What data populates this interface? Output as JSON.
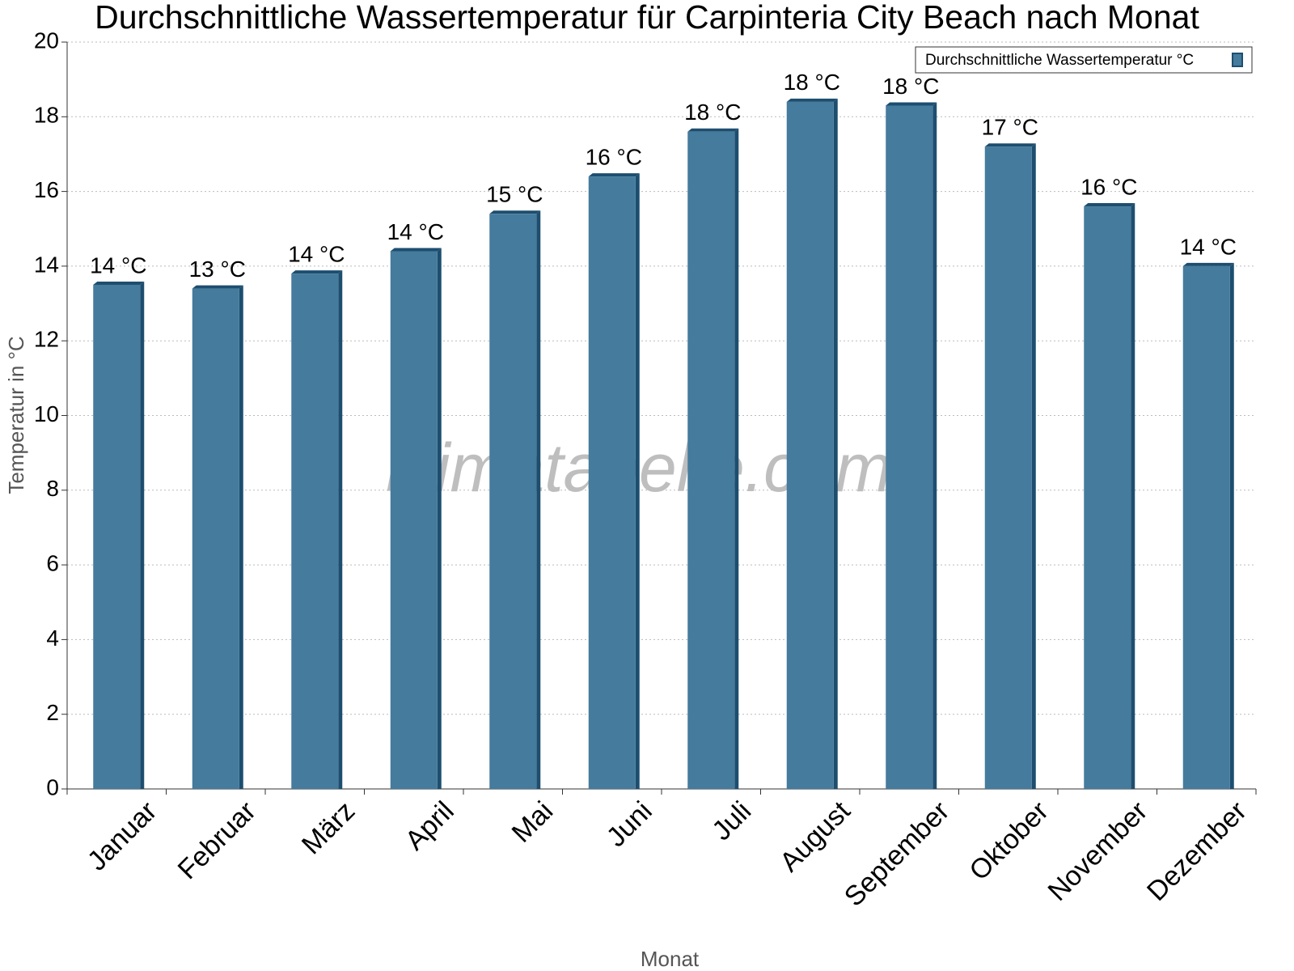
{
  "chart_data": {
    "type": "bar",
    "title": "Durchschnittliche Wassertemperatur für Carpinteria City Beach nach Monat",
    "watermark": "klimatabelle.com",
    "xlabel": "Monat",
    "ylabel": "Temperatur in °C",
    "categories": [
      "Januar",
      "Februar",
      "März",
      "April",
      "Mai",
      "Juni",
      "Juli",
      "August",
      "September",
      "Oktober",
      "November",
      "Dezember"
    ],
    "series": [
      {
        "name": "Durchschnittliche Wassertemperatur °C",
        "color": "#457b9d",
        "values": [
          13.5,
          13.4,
          13.8,
          14.4,
          15.4,
          16.4,
          17.6,
          18.4,
          18.3,
          17.2,
          15.6,
          14.0
        ],
        "value_labels": [
          "14 °C",
          "13 °C",
          "14 °C",
          "14 °C",
          "15 °C",
          "16 °C",
          "18 °C",
          "18 °C",
          "18 °C",
          "17 °C",
          "16 °C",
          "14 °C"
        ]
      }
    ],
    "ylim": [
      0,
      20
    ],
    "yticks": [
      0,
      2,
      4,
      6,
      8,
      10,
      12,
      14,
      16,
      18,
      20
    ],
    "grid": true,
    "legend": "top-right"
  }
}
